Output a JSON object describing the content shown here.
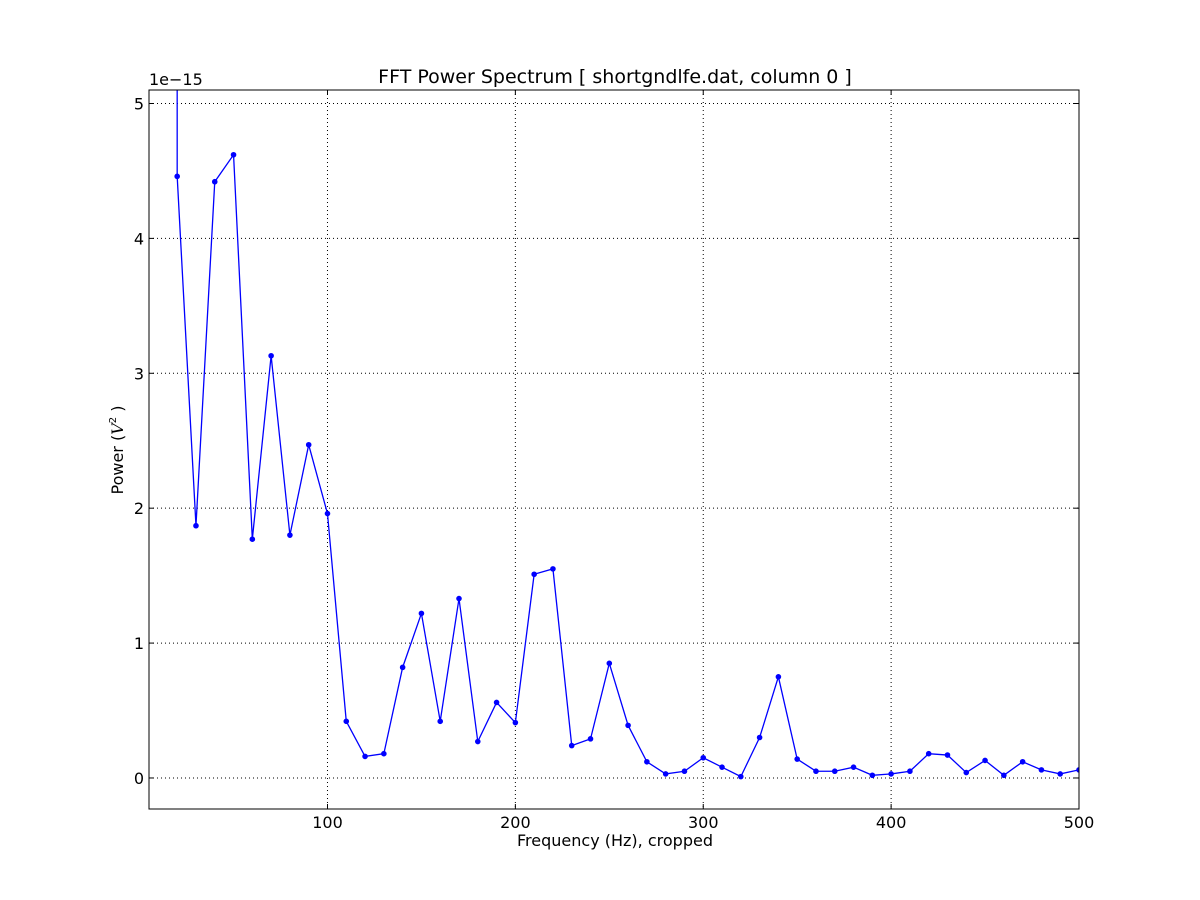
{
  "chart_data": {
    "type": "line",
    "title": "FFT Power Spectrum  [ shortgndlfe.dat, column 0 ]",
    "xlabel": "Frequency (Hz),  cropped",
    "ylabel_prefix": "Power (",
    "ylabel_italic": "V",
    "ylabel_sup": "2",
    "ylabel_suffix": " )",
    "y_offset_text": "1e−15",
    "xlim": [
      5,
      500
    ],
    "ylim": [
      -0.23,
      5.1
    ],
    "x_ticks": [
      100,
      200,
      300,
      400,
      500
    ],
    "y_ticks": [
      0,
      1,
      2,
      3,
      4,
      5
    ],
    "grid": true,
    "line_color": "#0000ff",
    "series": [
      {
        "x": [
          20,
          20,
          30,
          40,
          50,
          60,
          70,
          80,
          90,
          100,
          110,
          120,
          130,
          140,
          150,
          160,
          170,
          180,
          190,
          200,
          210,
          220,
          230,
          240,
          250,
          260,
          270,
          280,
          290,
          300,
          310,
          320,
          330,
          340,
          350,
          360,
          370,
          380,
          390,
          400,
          410,
          420,
          430,
          440,
          450,
          460,
          470,
          480,
          490,
          500
        ],
        "y": [
          5.3,
          4.46,
          1.87,
          4.42,
          4.62,
          1.77,
          3.13,
          1.8,
          2.47,
          1.96,
          0.42,
          0.16,
          0.18,
          0.82,
          1.22,
          0.42,
          1.33,
          0.27,
          0.56,
          0.41,
          1.51,
          1.55,
          0.24,
          0.29,
          0.85,
          0.39,
          0.12,
          0.03,
          0.05,
          0.15,
          0.08,
          0.01,
          0.3,
          0.75,
          0.14,
          0.05,
          0.05,
          0.08,
          0.02,
          0.03,
          0.05,
          0.18,
          0.17,
          0.04,
          0.13,
          0.02,
          0.12,
          0.06,
          0.03,
          0.06
        ]
      }
    ]
  }
}
